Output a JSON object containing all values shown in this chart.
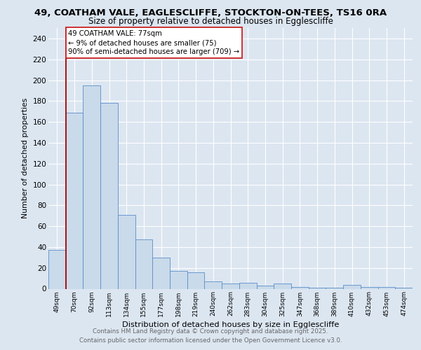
{
  "title": "49, COATHAM VALE, EAGLESCLIFFE, STOCKTON-ON-TEES, TS16 0RA",
  "subtitle": "Size of property relative to detached houses in Egglescliffe",
  "xlabel": "Distribution of detached houses by size in Egglescliffe",
  "ylabel": "Number of detached properties",
  "categories": [
    "49sqm",
    "70sqm",
    "92sqm",
    "113sqm",
    "134sqm",
    "155sqm",
    "177sqm",
    "198sqm",
    "219sqm",
    "240sqm",
    "262sqm",
    "283sqm",
    "304sqm",
    "325sqm",
    "347sqm",
    "368sqm",
    "389sqm",
    "410sqm",
    "432sqm",
    "453sqm",
    "474sqm"
  ],
  "bar_heights": [
    37,
    169,
    195,
    178,
    71,
    47,
    30,
    17,
    16,
    7,
    5,
    6,
    3,
    5,
    2,
    1,
    1,
    4,
    2,
    2,
    1
  ],
  "bar_color": "#c9daea",
  "bar_edge_color": "#5b8dc8",
  "vline_x": 0.5,
  "vline_color": "#aa1111",
  "annotation_line1": "49 COATHAM VALE: 77sqm",
  "annotation_line2": "← 9% of detached houses are smaller (75)",
  "annotation_line3": "90% of semi-detached houses are larger (709) →",
  "annotation_box_edge": "#cc2222",
  "bg_color": "#dce6f1",
  "footer_line1": "Contains HM Land Registry data © Crown copyright and database right 2025.",
  "footer_line2": "Contains public sector information licensed under the Open Government Licence v3.0.",
  "ylim": [
    0,
    250
  ],
  "yticks": [
    0,
    20,
    40,
    60,
    80,
    100,
    120,
    140,
    160,
    180,
    200,
    220,
    240
  ]
}
